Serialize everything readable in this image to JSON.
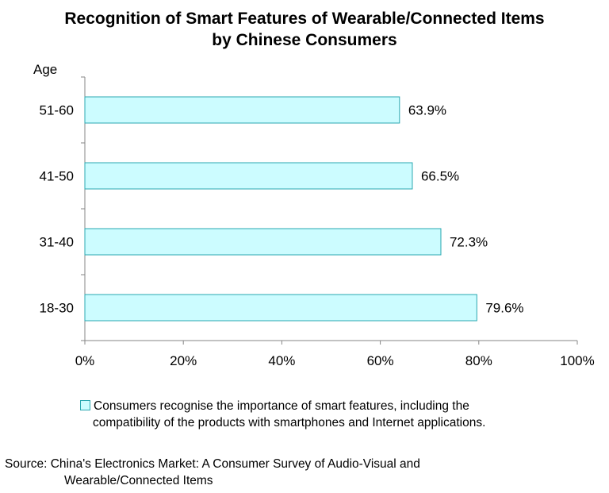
{
  "chart_data": {
    "type": "bar",
    "orientation": "horizontal",
    "title": "Recognition of Smart Features of Wearable/Connected Items by Chinese Consumers",
    "title_lines": [
      "Recognition of Smart Features of Wearable/Connected Items",
      "by Chinese Consumers"
    ],
    "ylabel": "Age",
    "xlabel": "",
    "categories": [
      "51-60",
      "41-50",
      "31-40",
      "18-30"
    ],
    "series": [
      {
        "name": "Consumers recognise the importance of smart features, including the compatibility of the products with smartphones and Internet applications.",
        "name_lines": [
          "Consumers recognise the importance of smart features, including the",
          "compatibility of the products with smartphones and Internet applications."
        ],
        "values": [
          63.9,
          66.5,
          72.3,
          79.6
        ],
        "data_labels": [
          "63.9%",
          "66.5%",
          "72.3%",
          "79.6%"
        ],
        "fill": "#ccfcff",
        "stroke": "#2aa7b0"
      }
    ],
    "xlim": [
      0,
      100
    ],
    "xticks": [
      "0%",
      "20%",
      "40%",
      "60%",
      "80%",
      "100%"
    ],
    "grid": false,
    "legend_position": "bottom"
  },
  "source_lines": [
    "Source: China's Electronics Market: A Consumer Survey of Audio-Visual and",
    "Wearable/Connected Items"
  ]
}
